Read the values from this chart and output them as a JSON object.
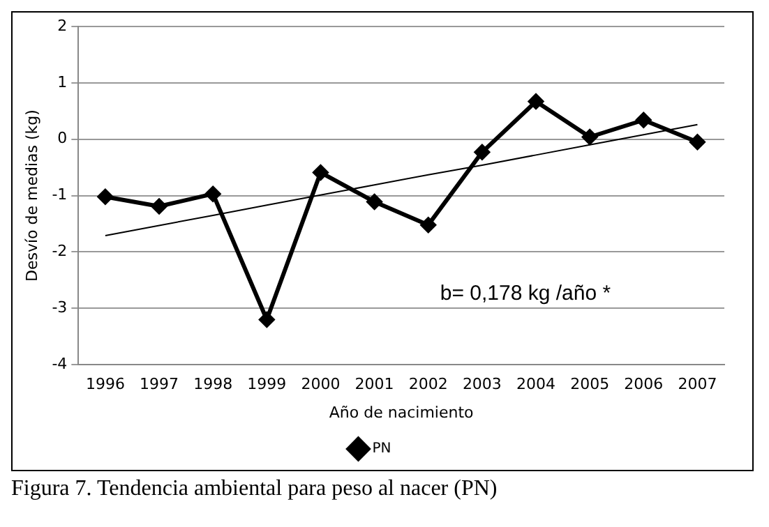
{
  "chart_data": {
    "type": "line",
    "title": "Figura 7. Tendencia ambiental para peso al nacer (PN)",
    "xlabel": "Año de nacimiento",
    "ylabel": "Desvío de medias (kg)",
    "categories": [
      "1996",
      "1997",
      "1998",
      "1999",
      "2000",
      "2001",
      "2002",
      "2003",
      "2004",
      "2005",
      "2006",
      "2007"
    ],
    "series": [
      {
        "name": "PN",
        "color": "#000000",
        "marker": "diamond",
        "values": [
          -1.02,
          -1.19,
          -0.97,
          -3.2,
          -0.59,
          -1.11,
          -1.52,
          -0.23,
          0.67,
          0.04,
          0.34,
          -0.05
        ]
      },
      {
        "type": "line",
        "color": "#000000",
        "marker": "none",
        "values": [
          -1.71,
          -1.53,
          -1.35,
          -1.17,
          -0.99,
          -0.81,
          -0.63,
          -0.46,
          -0.28,
          -0.1,
          0.08,
          0.26
        ]
      }
    ],
    "ylim": [
      -4,
      2
    ],
    "yticks": [
      -4,
      -3,
      -2,
      -1,
      0,
      1,
      2
    ],
    "grid": "y",
    "legend": "bottom",
    "annotations": [
      "b= 0,178 kg /año *"
    ]
  }
}
